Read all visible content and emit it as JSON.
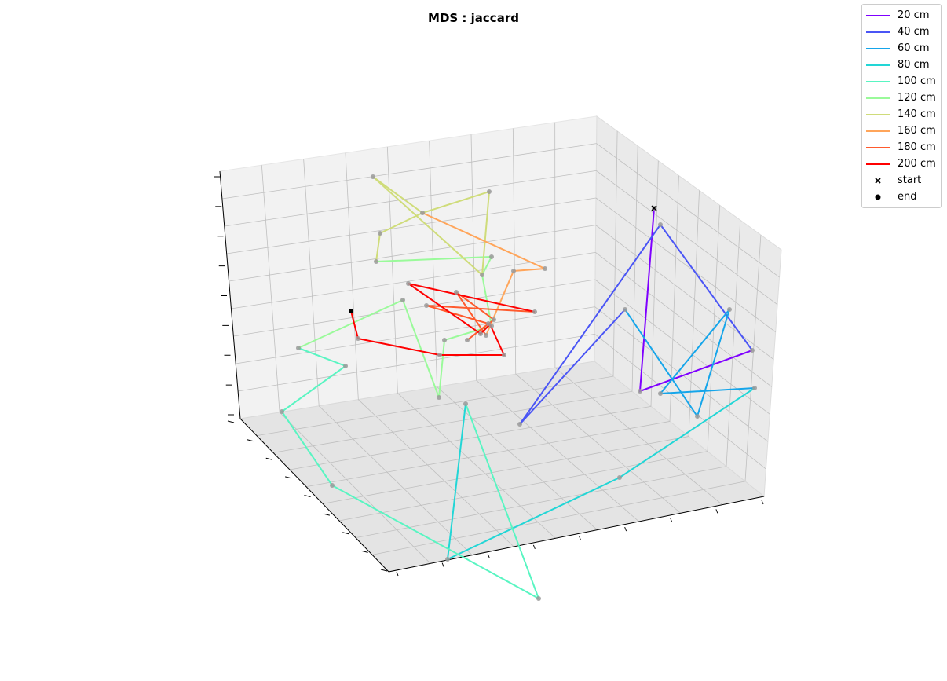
{
  "chart_data": {
    "type": "scatter3d",
    "title": "MDS : jaccard",
    "grid": true,
    "legend_position": "top-right",
    "series": [
      {
        "name": "20 cm",
        "color": "#7f00ff"
      },
      {
        "name": "40 cm",
        "color": "#4a55f5"
      },
      {
        "name": "60 cm",
        "color": "#15a5ea"
      },
      {
        "name": "80 cm",
        "color": "#22d6d6"
      },
      {
        "name": "100 cm",
        "color": "#59f5c2"
      },
      {
        "name": "120 cm",
        "color": "#9afa9a"
      },
      {
        "name": "140 cm",
        "color": "#cfdc7a"
      },
      {
        "name": "160 cm",
        "color": "#ffa55a"
      },
      {
        "name": "180 cm",
        "color": "#ff5a2d"
      },
      {
        "name": "200 cm",
        "color": "#ff0000"
      }
    ],
    "markers": [
      {
        "name": "start",
        "symbol": "x"
      },
      {
        "name": "end",
        "symbol": "o"
      }
    ]
  }
}
